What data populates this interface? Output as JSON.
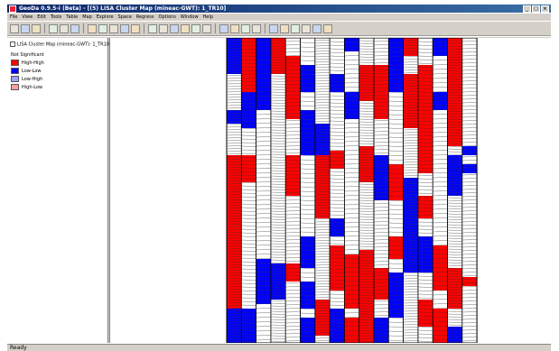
{
  "window": {
    "title": "GeoDa 0.9.5-i (Beta) - [(5) LISA Cluster Map (mineac-GWT): 1_TR10]",
    "controls": [
      "minimize-icon",
      "maximize-icon",
      "close-icon"
    ]
  },
  "menu": [
    "File",
    "View",
    "Edit",
    "Tools",
    "Table",
    "Map",
    "Explore",
    "Space",
    "Regress",
    "Options",
    "Window",
    "Help"
  ],
  "toolbar": {
    "icons": [
      "open-icon",
      "close-project-icon",
      "save-icon",
      "select-icon",
      "pan-icon",
      "zoom-icon",
      "table-icon",
      "weights-icon",
      "histogram-icon",
      "boxplot-icon",
      "scatter-icon",
      "map-icon",
      "moran-icon",
      "lisa-icon",
      "cluster-icon",
      "percentile-icon",
      "bivariate-icon",
      "window-icon",
      "cascade-icon",
      "tile-icon",
      "gray-icon",
      "zoomin-icon",
      "zoomout-icon",
      "fullextent-icon",
      "legend-icon",
      "settings-icon",
      "record-icon"
    ]
  },
  "legend": {
    "title": "LISA Cluster Map (mineac-GWT): 1_TR10",
    "items": [
      {
        "label": "Not Significant",
        "color": "#ffffff"
      },
      {
        "label": "High-High",
        "color": "#ff0000"
      },
      {
        "label": "Low-Low",
        "color": "#0000ff"
      },
      {
        "label": "Low-High",
        "color": "#a0a0ff"
      },
      {
        "label": "High-Low",
        "color": "#ff9e9e"
      }
    ]
  },
  "colors": {
    "high_high": "#ff0000",
    "low_low": "#0000ff",
    "not_significant": "#ffffff"
  },
  "status": {
    "text": "Ready"
  }
}
